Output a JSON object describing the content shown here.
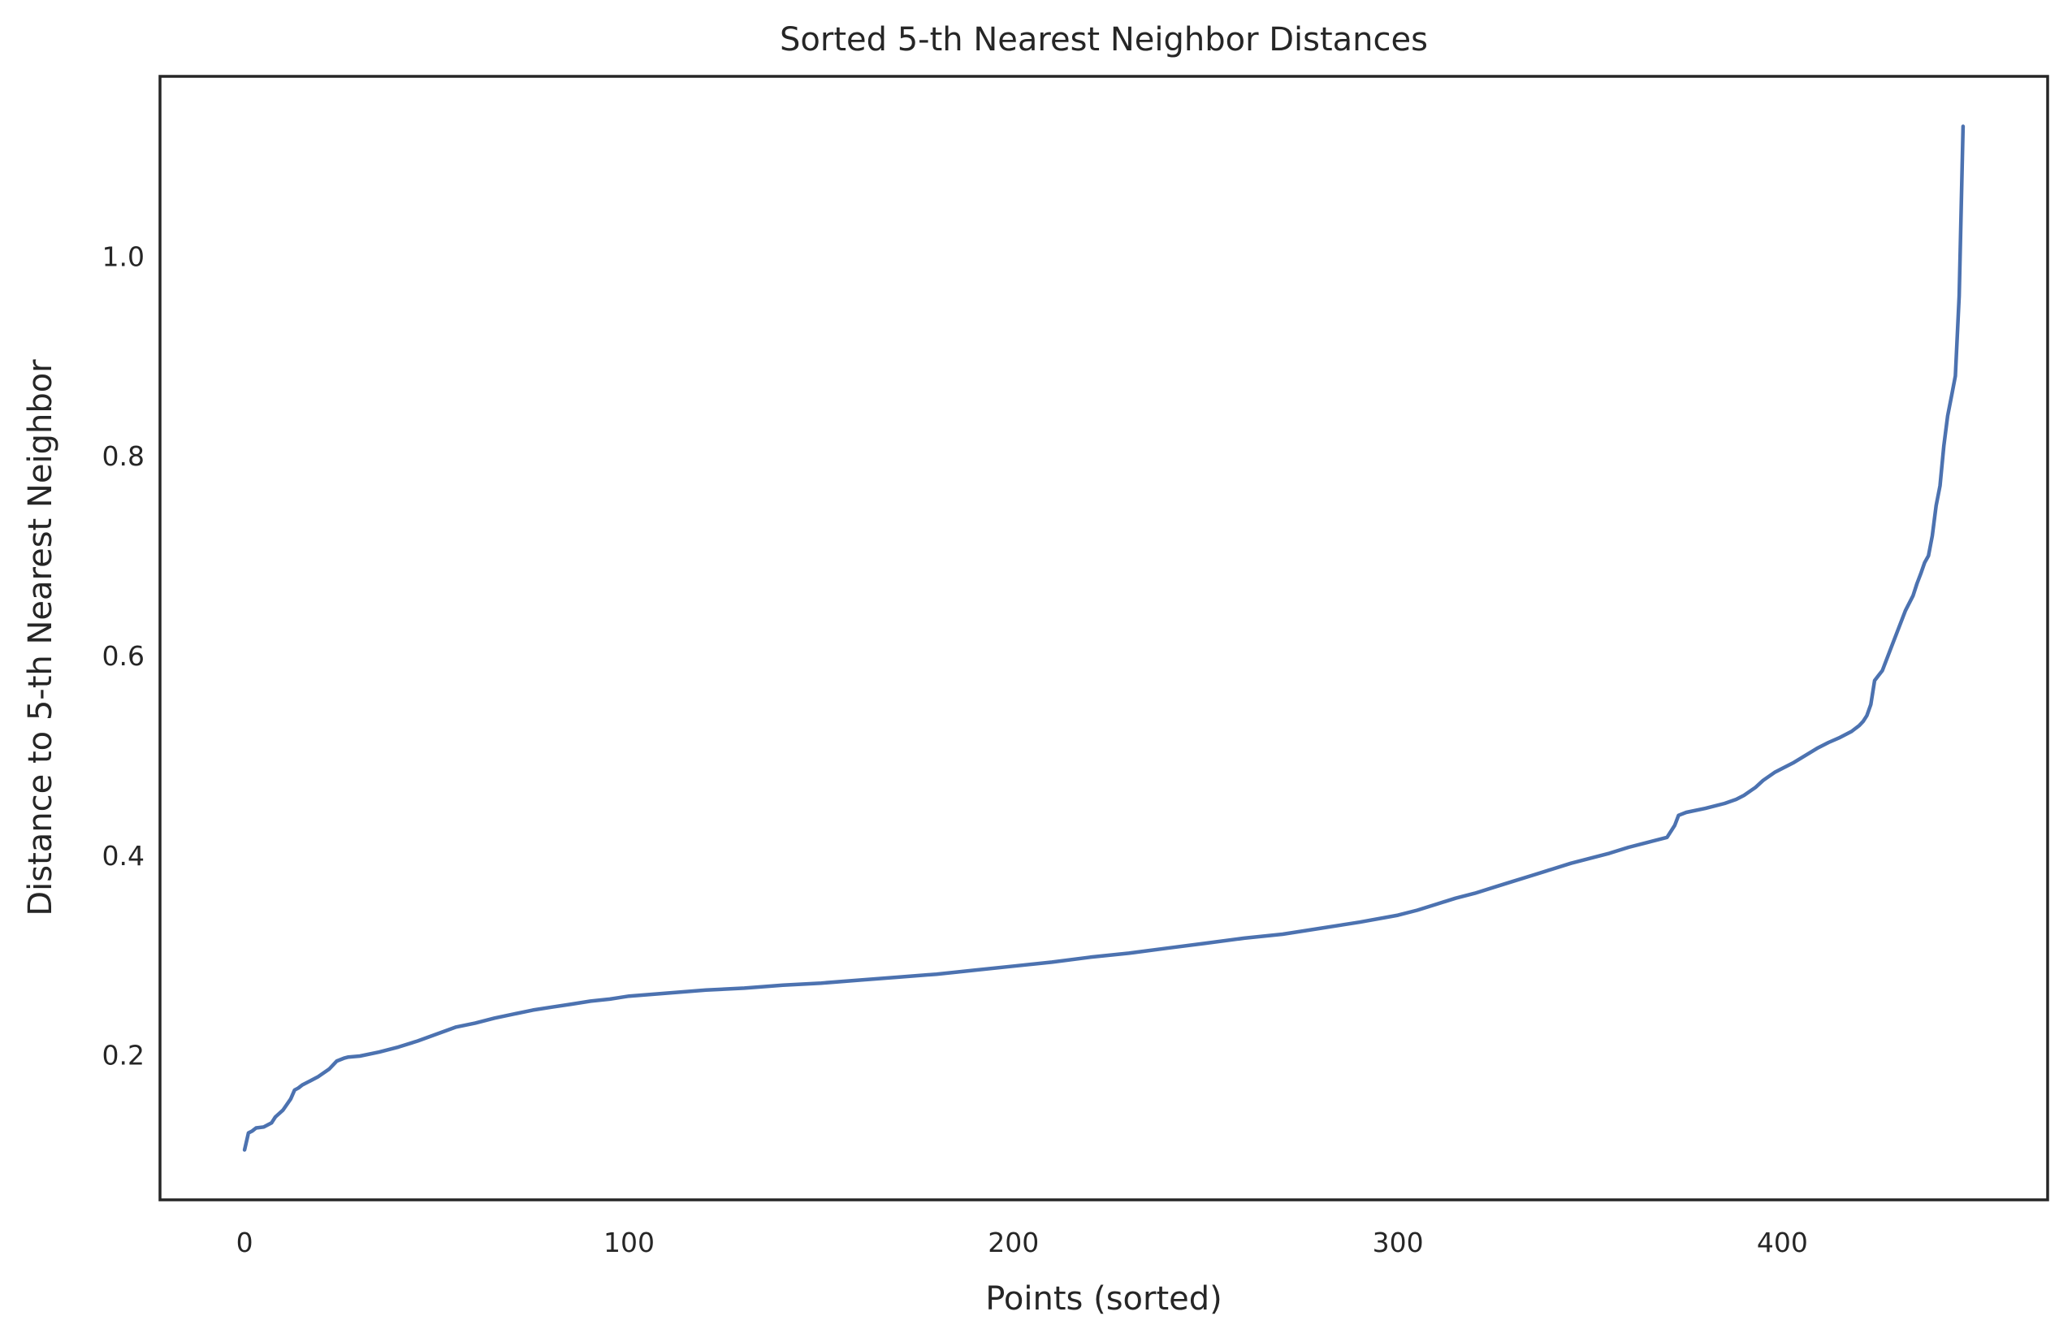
{
  "chart_data": {
    "type": "line",
    "title": "Sorted 5-th Nearest Neighbor Distances",
    "xlabel": "Points (sorted)",
    "ylabel": "Distance to 5-th Nearest Neighbor",
    "xlim": [
      -22,
      469
    ],
    "ylim": [
      0.055,
      1.18
    ],
    "xticks": [
      0,
      100,
      200,
      300,
      400
    ],
    "xtick_labels": [
      "0",
      "100",
      "200",
      "300",
      "400"
    ],
    "yticks": [
      0.2,
      0.4,
      0.6,
      0.8,
      1.0
    ],
    "ytick_labels": [
      "0.2",
      "0.4",
      "0.6",
      "0.8",
      "1.0"
    ],
    "grid": false,
    "legend": "none",
    "series": [
      {
        "color": "#4c72b0",
        "x": [
          0,
          1,
          2,
          3,
          5,
          7,
          8,
          10,
          12,
          13,
          14,
          15,
          17,
          19,
          22,
          24,
          26,
          27,
          30,
          35,
          40,
          45,
          50,
          55,
          60,
          65,
          70,
          75,
          80,
          85,
          90,
          95,
          100,
          110,
          120,
          130,
          140,
          150,
          160,
          170,
          180,
          190,
          200,
          210,
          220,
          230,
          240,
          250,
          260,
          270,
          280,
          290,
          300,
          305,
          310,
          315,
          320,
          325,
          330,
          335,
          340,
          345,
          350,
          355,
          360,
          365,
          370,
          372,
          373,
          375,
          380,
          385,
          388,
          390,
          393,
          395,
          398,
          400,
          403,
          406,
          409,
          412,
          415,
          418,
          420,
          421,
          422,
          423,
          424,
          425,
          426,
          428,
          430,
          432,
          434,
          435,
          436,
          437,
          438,
          439,
          440,
          441,
          442,
          443,
          444,
          445,
          446,
          447
        ],
        "y": [
          0.105,
          0.122,
          0.124,
          0.127,
          0.128,
          0.132,
          0.138,
          0.145,
          0.156,
          0.165,
          0.167,
          0.17,
          0.174,
          0.178,
          0.186,
          0.194,
          0.197,
          0.198,
          0.199,
          0.203,
          0.208,
          0.214,
          0.221,
          0.228,
          0.232,
          0.237,
          0.241,
          0.245,
          0.248,
          0.251,
          0.254,
          0.256,
          0.259,
          0.262,
          0.265,
          0.267,
          0.27,
          0.272,
          0.275,
          0.278,
          0.281,
          0.285,
          0.289,
          0.293,
          0.298,
          0.302,
          0.307,
          0.312,
          0.317,
          0.321,
          0.327,
          0.333,
          0.34,
          0.345,
          0.351,
          0.357,
          0.362,
          0.368,
          0.374,
          0.38,
          0.386,
          0.392,
          0.397,
          0.402,
          0.408,
          0.413,
          0.418,
          0.43,
          0.44,
          0.443,
          0.447,
          0.452,
          0.456,
          0.46,
          0.468,
          0.475,
          0.483,
          0.487,
          0.493,
          0.5,
          0.507,
          0.513,
          0.518,
          0.524,
          0.53,
          0.534,
          0.54,
          0.551,
          0.575,
          0.58,
          0.585,
          0.605,
          0.625,
          0.645,
          0.66,
          0.672,
          0.682,
          0.693,
          0.7,
          0.72,
          0.75,
          0.77,
          0.81,
          0.84,
          0.86,
          0.88,
          0.96,
          1.13
        ]
      }
    ]
  }
}
